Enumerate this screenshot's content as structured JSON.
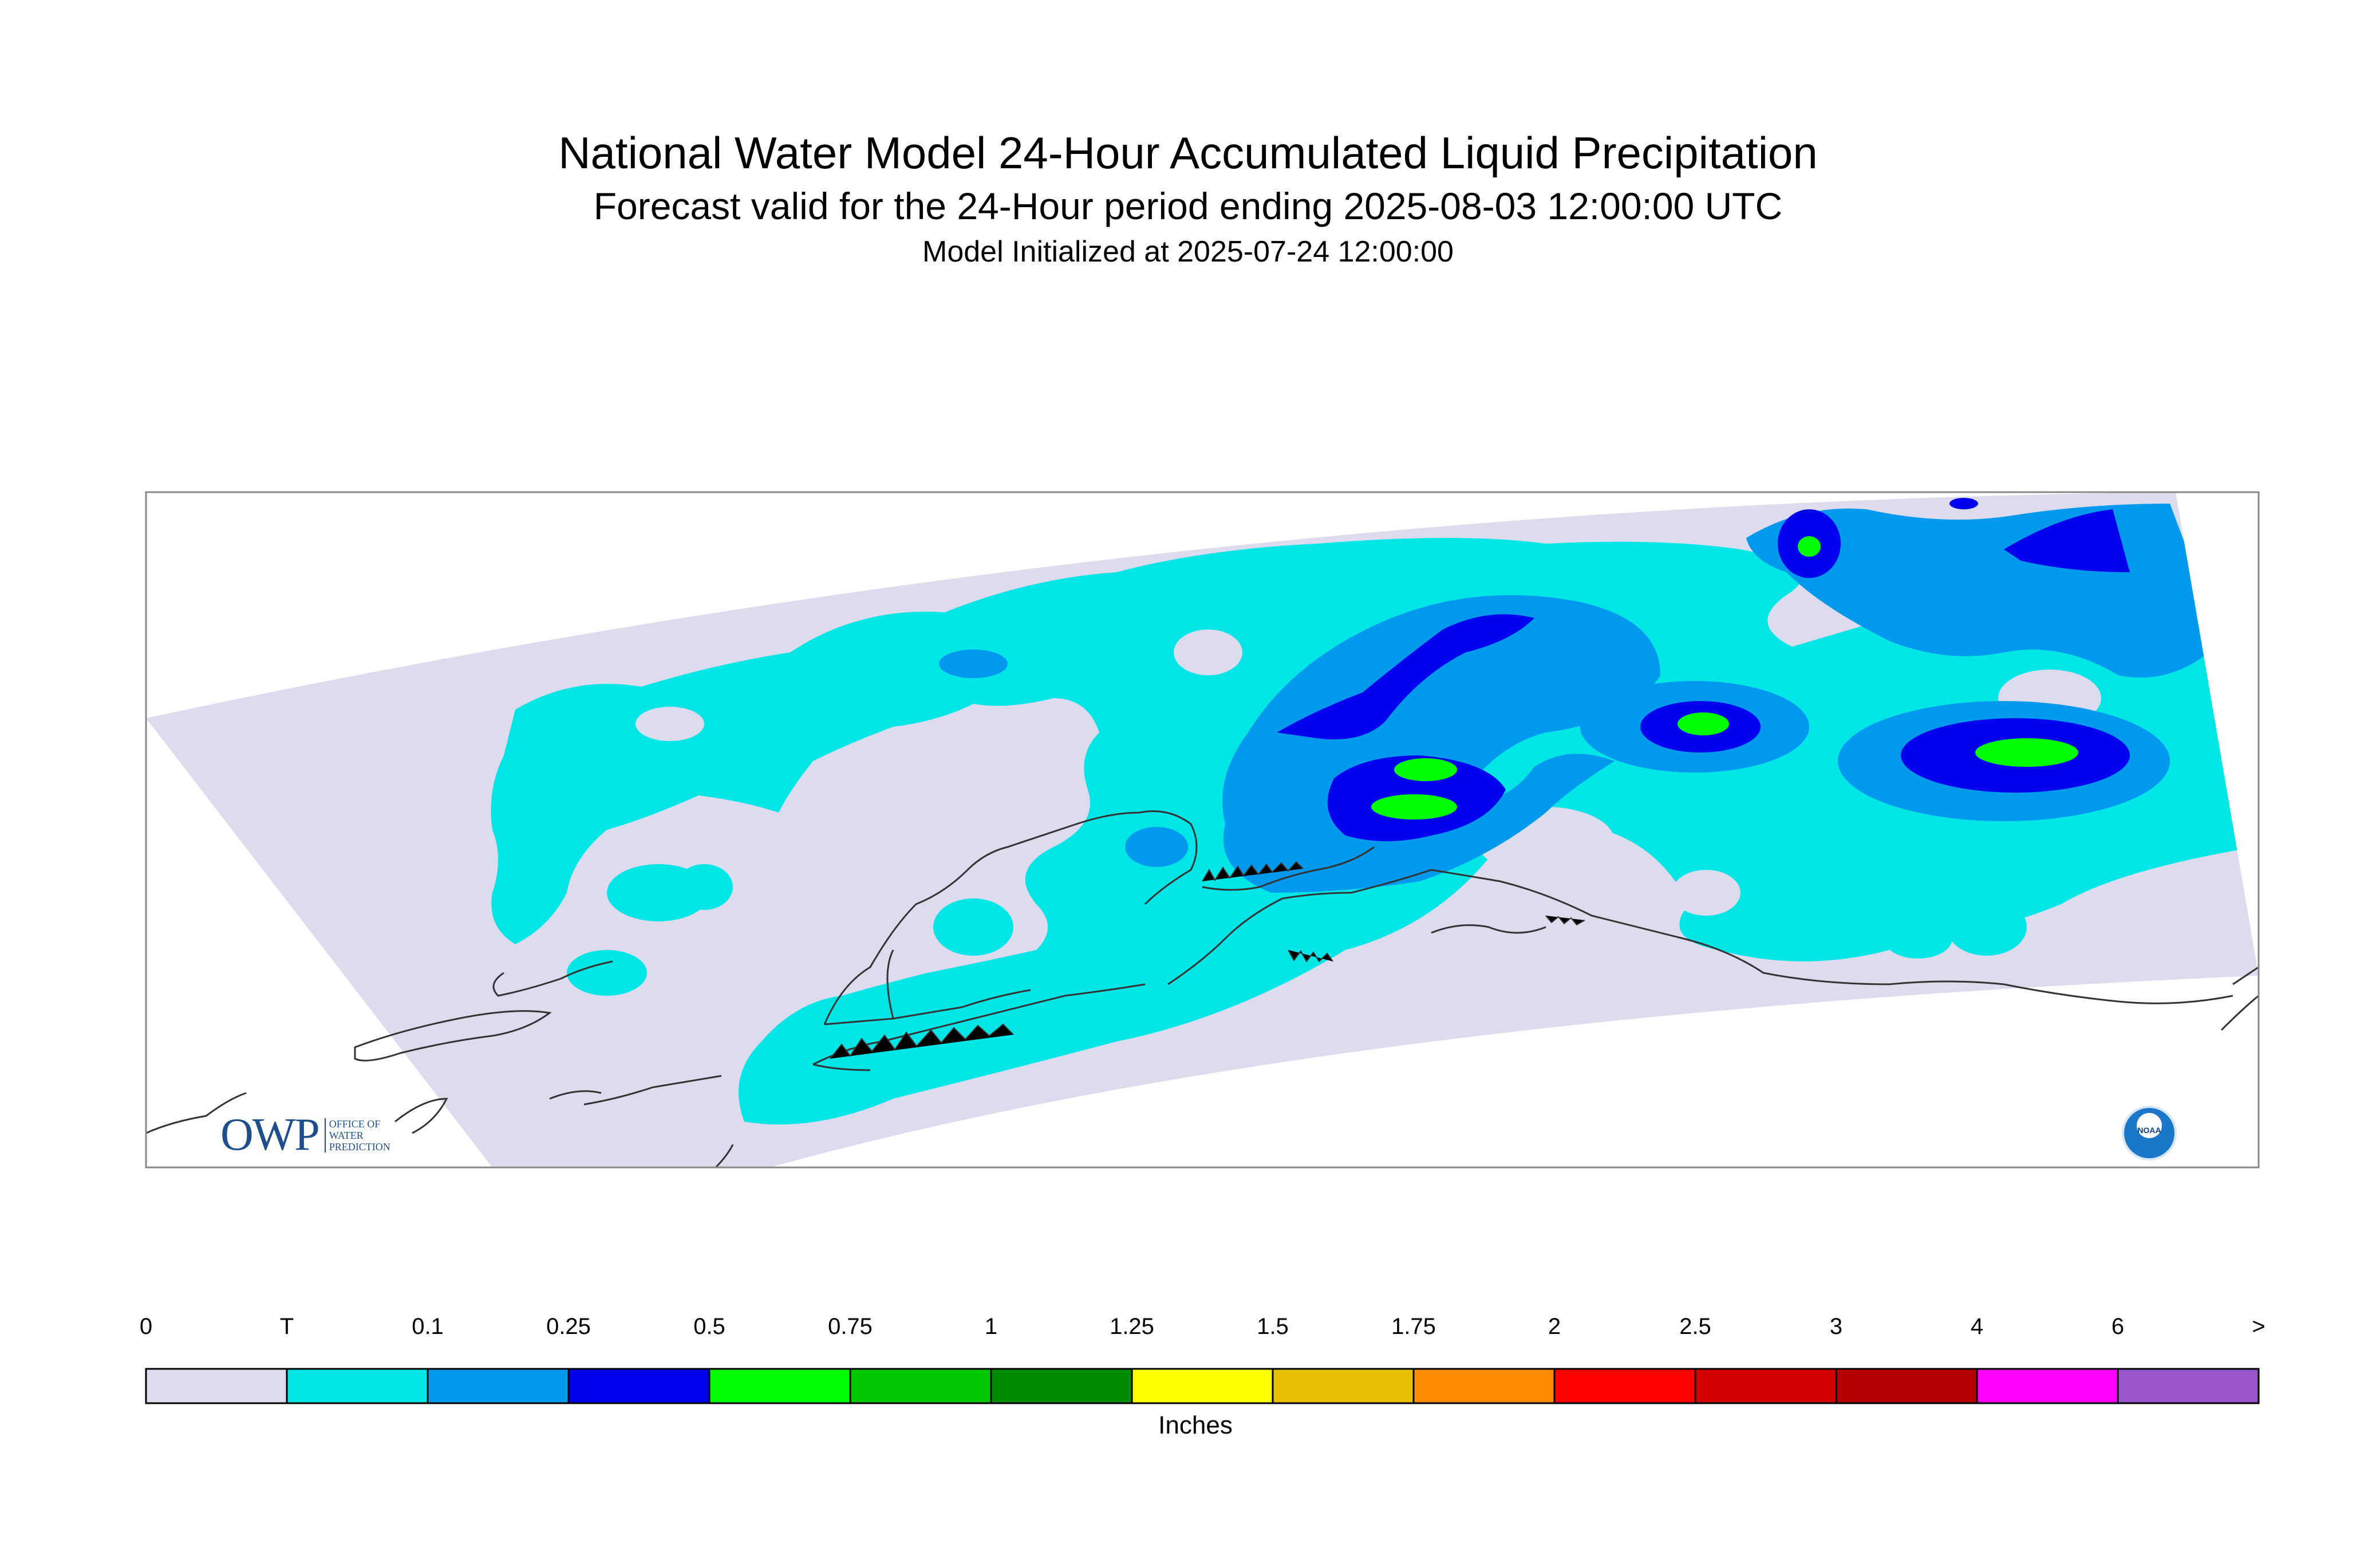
{
  "title": "National Water Model 24-Hour Accumulated Liquid Precipitation",
  "subtitle": "Forecast valid for the 24-Hour period ending 2025-08-03 12:00:00 UTC",
  "init_line": "Model Initialized at 2025-07-24 12:00:00",
  "colorbar": {
    "units": "Inches",
    "labels": [
      "0",
      "T",
      "0.1",
      "0.25",
      "0.5",
      "0.75",
      "1",
      "1.25",
      "1.5",
      "1.75",
      "2",
      "2.5",
      "3",
      "4",
      "6",
      ">"
    ],
    "colors": [
      "#dcdcee",
      "#00e5e5",
      "#0099ee",
      "#0000ee",
      "#00ff00",
      "#00c800",
      "#008c00",
      "#ffff00",
      "#e6c000",
      "#ff8c00",
      "#ff0000",
      "#d20000",
      "#b40000",
      "#ff00ff",
      "#9955cc"
    ]
  },
  "logos": {
    "owp_mark": "OWP",
    "owp_text": "OFFICE OF WATER PREDICTION",
    "noaa_text": "NOAA"
  },
  "map_colors": {
    "domain_zero": "#dcdcee",
    "trace": "#00e5e5",
    "light": "#0099ee",
    "moderate": "#0000ee",
    "heavy": "#00ff00",
    "coastline": "#333333",
    "frame": "#888888"
  }
}
